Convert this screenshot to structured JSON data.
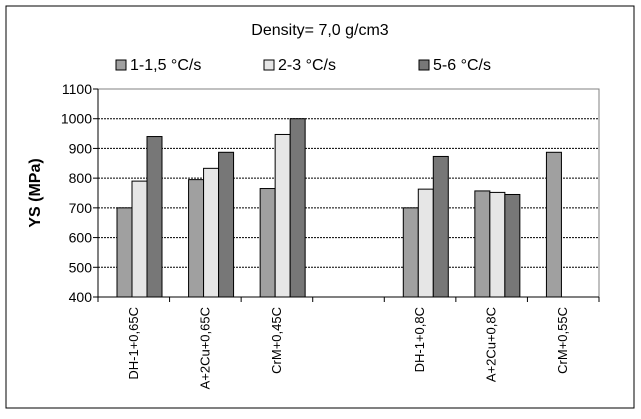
{
  "chart_data": {
    "type": "bar",
    "title": "Density= 7,0 g/cm3",
    "xlabel": "",
    "ylabel": "YS (MPa)",
    "ylim": [
      400,
      1100
    ],
    "yticks": [
      400,
      500,
      600,
      700,
      800,
      900,
      1000,
      1100
    ],
    "grid": true,
    "legend_position": "top",
    "categories": [
      "DH-1+0,65C",
      "A+2Cu+0,65C",
      "CrM+0,45C",
      "",
      "DH-1+0,8C",
      "A+2Cu+0,8C",
      "CrM+0,55C"
    ],
    "series": [
      {
        "name": "1-1,5 °C/s",
        "color": "#a0a0a0",
        "values": [
          700,
          795,
          765,
          null,
          700,
          757,
          887
        ]
      },
      {
        "name": "2-3 °C/s",
        "color": "#e6e6e6",
        "values": [
          790,
          833,
          947,
          null,
          763,
          752,
          null
        ]
      },
      {
        "name": "5-6 °C/s",
        "color": "#777777",
        "values": [
          940,
          887,
          1000,
          null,
          873,
          745,
          null
        ]
      }
    ]
  }
}
